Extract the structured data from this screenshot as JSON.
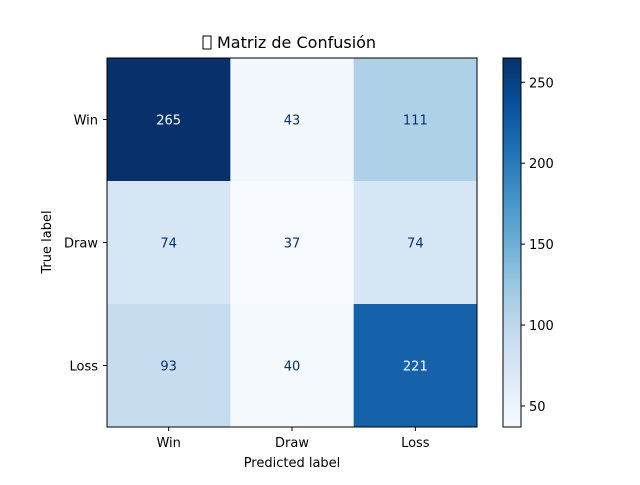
{
  "chart_data": {
    "type": "heatmap",
    "title": "📊 Matriz de Confusión",
    "title_glyph_missing": "□",
    "title_text": "Matriz de Confusión",
    "xlabel": "Predicted label",
    "ylabel": "True label",
    "x_categories": [
      "Win",
      "Draw",
      "Loss"
    ],
    "y_categories": [
      "Win",
      "Draw",
      "Loss"
    ],
    "values": [
      [
        265,
        43,
        111
      ],
      [
        74,
        37,
        74
      ],
      [
        93,
        40,
        221
      ]
    ],
    "colorbar": {
      "min": 37,
      "max": 265,
      "ticks": [
        50,
        100,
        150,
        200,
        250
      ]
    },
    "colormap": "Blues",
    "grid": false
  }
}
